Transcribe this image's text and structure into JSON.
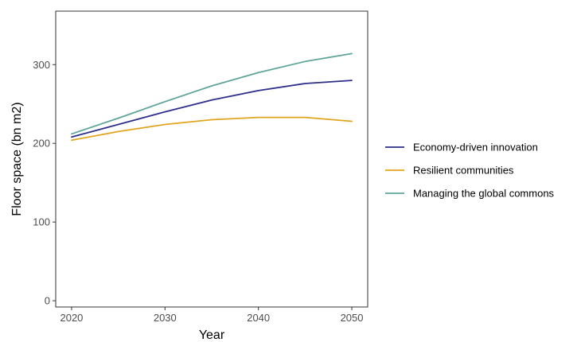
{
  "chart_data": {
    "type": "line",
    "title": "",
    "xlabel": "Year",
    "ylabel": "Floor space (bn m2)",
    "x": [
      2020,
      2025,
      2030,
      2035,
      2040,
      2045,
      2050
    ],
    "xlim": [
      2018.3,
      2051.7
    ],
    "ylim": [
      -8,
      368
    ],
    "xticks": [
      2020,
      2030,
      2040,
      2050
    ],
    "yticks": [
      0,
      100,
      200,
      300
    ],
    "grid": false,
    "legend_position": "right",
    "series": [
      {
        "name": "Economy-driven innovation",
        "color": "#2d2f8a",
        "values": [
          208,
          224,
          240,
          255,
          267,
          276,
          280
        ]
      },
      {
        "name": "Resilient communities",
        "color": "#e3a51f",
        "values": [
          204,
          215,
          224,
          230,
          233,
          233,
          228
        ]
      },
      {
        "name": "Managing the global commons",
        "color": "#5fa59a",
        "values": [
          212,
          232,
          253,
          273,
          290,
          304,
          314
        ]
      }
    ]
  }
}
